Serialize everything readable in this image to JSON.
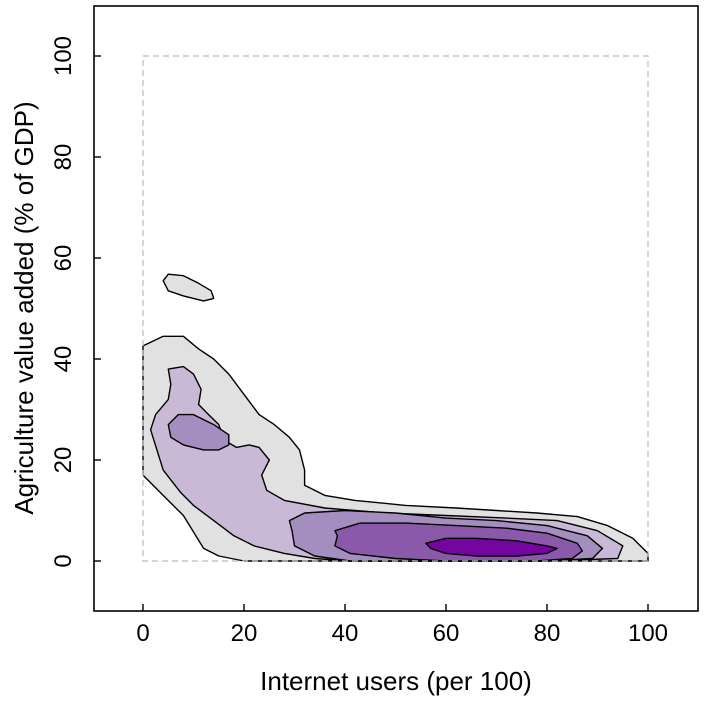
{
  "chart_data": {
    "type": "contour",
    "xlabel": "Internet users (per 100)",
    "ylabel": "Agriculture value added (% of GDP)",
    "xlim": [
      -10,
      110
    ],
    "ylim": [
      -10,
      110
    ],
    "x_ticks": [
      "0",
      "20",
      "40",
      "60",
      "80",
      "100"
    ],
    "y_ticks": [
      "0",
      "20",
      "40",
      "60",
      "80",
      "100"
    ],
    "x_tick_values": [
      0,
      20,
      40,
      60,
      80,
      100
    ],
    "y_tick_values": [
      0,
      20,
      40,
      60,
      80,
      100
    ],
    "bounds_box": {
      "x": [
        0,
        100
      ],
      "y": [
        0,
        100
      ],
      "style": "dashed",
      "color": "#bbbbbb"
    },
    "grid": false,
    "legend": "none",
    "density_levels": [
      {
        "level": 1,
        "color": "#e1e1e1",
        "polygons": [
          [
            [
              0,
              42.6
            ],
            [
              4,
              44.5
            ],
            [
              8,
              44.5
            ],
            [
              11,
              42
            ],
            [
              14,
              40
            ],
            [
              17,
              37
            ],
            [
              20,
              33
            ],
            [
              23,
              29
            ],
            [
              26,
              27
            ],
            [
              29,
              24.5
            ],
            [
              31,
              22
            ],
            [
              32,
              18
            ],
            [
              32,
              15
            ],
            [
              36,
              13
            ],
            [
              42,
              12
            ],
            [
              52,
              11
            ],
            [
              62,
              10.5
            ],
            [
              70,
              10
            ],
            [
              78,
              9.5
            ],
            [
              86,
              8.8
            ],
            [
              92,
              7
            ],
            [
              97,
              4.5
            ],
            [
              100,
              1.5
            ],
            [
              100,
              0
            ],
            [
              96,
              0
            ],
            [
              80,
              0
            ],
            [
              60,
              0
            ],
            [
              41,
              0
            ],
            [
              28,
              0
            ],
            [
              20,
              0
            ],
            [
              15,
              1
            ],
            [
              12,
              2.5
            ],
            [
              8,
              9
            ],
            [
              4,
              13
            ],
            [
              0,
              17
            ]
          ],
          [
            [
              4,
              55.5
            ],
            [
              5,
              56.8
            ],
            [
              8,
              56.5
            ],
            [
              11,
              55
            ],
            [
              13.5,
              53.5
            ],
            [
              14,
              52
            ],
            [
              12,
              51.5
            ],
            [
              8,
              52.5
            ],
            [
              5,
              53.5
            ]
          ]
        ]
      },
      {
        "level": 2,
        "color": "#c9b9d7",
        "polygons": [
          [
            [
              5,
              38
            ],
            [
              8,
              38.5
            ],
            [
              10,
              37
            ],
            [
              11.5,
              34
            ],
            [
              11,
              31
            ],
            [
              13,
              29
            ],
            [
              15,
              27
            ],
            [
              16,
              24
            ],
            [
              18.5,
              22.5
            ],
            [
              21,
              23
            ],
            [
              23,
              22.5
            ],
            [
              25,
              20
            ],
            [
              23.5,
              17
            ],
            [
              24.5,
              14
            ],
            [
              28,
              12
            ],
            [
              36,
              10.5
            ],
            [
              48,
              9.5
            ],
            [
              60,
              9
            ],
            [
              72,
              8.5
            ],
            [
              82,
              8
            ],
            [
              90,
              6
            ],
            [
              95,
              3
            ],
            [
              94,
              0.5
            ],
            [
              80,
              0
            ],
            [
              60,
              0
            ],
            [
              41,
              0
            ],
            [
              34,
              0.5
            ],
            [
              28,
              1.5
            ],
            [
              22,
              3
            ],
            [
              18,
              5
            ],
            [
              14,
              8
            ],
            [
              10,
              11
            ],
            [
              7.5,
              13.5
            ],
            [
              4,
              18
            ],
            [
              1.5,
              26
            ],
            [
              2.5,
              29
            ],
            [
              5,
              32
            ],
            [
              5.5,
              35
            ]
          ]
        ]
      },
      {
        "level": 3,
        "color": "#a48dbf",
        "polygons": [
          [
            [
              5,
              27
            ],
            [
              7,
              29
            ],
            [
              10,
              29
            ],
            [
              14,
              27
            ],
            [
              17,
              25
            ],
            [
              17,
              23
            ],
            [
              15,
              22
            ],
            [
              12,
              22
            ],
            [
              8,
              23
            ],
            [
              5.5,
              24.5
            ]
          ],
          [
            [
              29,
              8
            ],
            [
              32,
              9.5
            ],
            [
              40,
              10
            ],
            [
              50,
              9.5
            ],
            [
              60,
              8.5
            ],
            [
              70,
              8
            ],
            [
              80,
              7
            ],
            [
              88,
              5
            ],
            [
              91,
              2.5
            ],
            [
              89,
              0.5
            ],
            [
              80,
              0
            ],
            [
              60,
              0
            ],
            [
              41,
              0
            ],
            [
              34,
              1
            ],
            [
              30,
              3
            ],
            [
              29.5,
              6
            ]
          ]
        ]
      },
      {
        "level": 4,
        "color": "#8a59a9",
        "polygons": [
          [
            [
              38,
              6
            ],
            [
              43,
              7.5
            ],
            [
              52,
              7.5
            ],
            [
              62,
              7
            ],
            [
              72,
              6.5
            ],
            [
              80,
              5.5
            ],
            [
              86,
              3.5
            ],
            [
              87,
              2
            ],
            [
              85,
              0.5
            ],
            [
              78,
              0
            ],
            [
              60,
              0
            ],
            [
              50,
              0.5
            ],
            [
              41,
              1.5
            ],
            [
              38,
              3
            ],
            [
              38.5,
              5
            ]
          ]
        ]
      },
      {
        "level": 5,
        "color": "#7505a0",
        "polygons": [
          [
            [
              56,
              3.5
            ],
            [
              60,
              4.5
            ],
            [
              66,
              4.5
            ],
            [
              74,
              4
            ],
            [
              80,
              3
            ],
            [
              82,
              2.5
            ],
            [
              80,
              1.5
            ],
            [
              74,
              1
            ],
            [
              66,
              1
            ],
            [
              60,
              1.5
            ],
            [
              57,
              2.5
            ]
          ]
        ]
      }
    ]
  }
}
